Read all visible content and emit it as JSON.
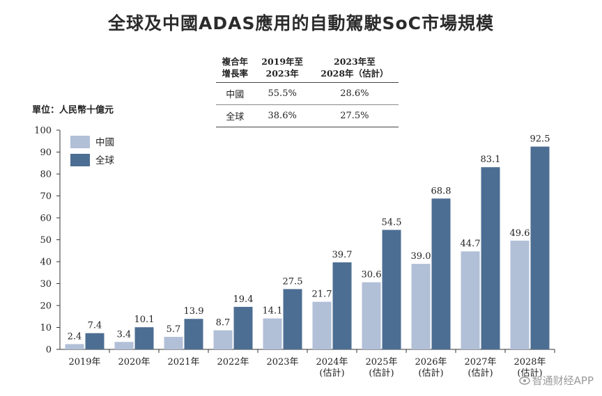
{
  "chart_data": {
    "type": "bar",
    "title": "全球及中國ADAS應用的自動駕駛SoC市場規模",
    "unit_label": "單位：人民幣十億元",
    "categories": [
      [
        "2019年"
      ],
      [
        "2020年"
      ],
      [
        "2021年"
      ],
      [
        "2022年"
      ],
      [
        "2023年"
      ],
      [
        "2024年",
        "(估計)"
      ],
      [
        "2025年",
        "(估計)"
      ],
      [
        "2026年",
        "(估計)"
      ],
      [
        "2027年",
        "(估計)"
      ],
      [
        "2028年",
        "(估計)"
      ]
    ],
    "series": [
      {
        "name": "中國",
        "color": "#b1bfd7",
        "values": [
          2.4,
          3.4,
          5.7,
          8.7,
          14.1,
          21.7,
          30.6,
          39.0,
          44.7,
          49.6
        ],
        "labels": [
          "2.4",
          "3.4",
          "5.7",
          "8.7",
          "14.1",
          "21.7",
          "30.6",
          "39.0",
          "44.7",
          "49.6"
        ]
      },
      {
        "name": "全球",
        "color": "#4d6e93",
        "values": [
          7.4,
          10.1,
          13.9,
          19.4,
          27.5,
          39.7,
          54.5,
          68.8,
          83.1,
          92.5
        ],
        "labels": [
          "7.4",
          "10.1",
          "13.9",
          "19.4",
          "27.5",
          "39.7",
          "54.5",
          "68.8",
          "83.1",
          "92.5"
        ]
      }
    ],
    "ylim": [
      0,
      100
    ],
    "yticks": [
      0,
      10,
      20,
      30,
      40,
      50,
      60,
      70,
      80,
      90,
      100
    ],
    "legend_position": "top-left",
    "grid": false
  },
  "cagr_table": {
    "headers": [
      [
        "複合年",
        "增長率"
      ],
      [
        "2019年至",
        "2023年"
      ],
      [
        "2023年至",
        "2028年（估計）"
      ]
    ],
    "rows": [
      [
        "中國",
        "55.5%",
        "28.6%"
      ],
      [
        "全球",
        "38.6%",
        "27.5%"
      ]
    ]
  },
  "watermark": "智通财经APP"
}
